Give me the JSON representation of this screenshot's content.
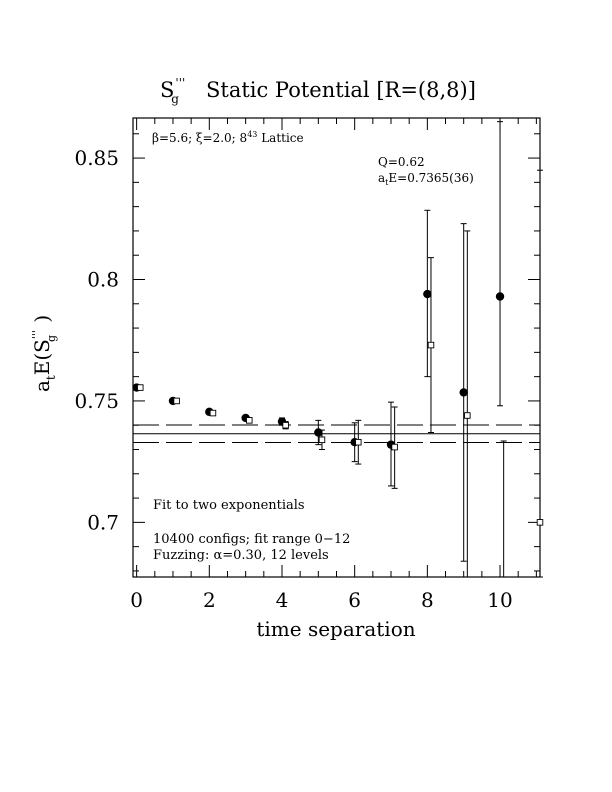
{
  "chart_data": {
    "type": "scatter",
    "title": "Static Potential [R=(8,8)]",
    "title_operator_base": "S",
    "title_operator_sup": "'''",
    "title_operator_sub": "g",
    "ylabel_prefix": "a",
    "ylabel_prefix_sub": "t",
    "ylabel_main": "E(S",
    "ylabel_sup": "'''",
    "ylabel_sub": "g",
    "ylabel_close": " )",
    "xlabel": "time separation",
    "xlim": [
      -0.1,
      11.1
    ],
    "ylim": [
      0.6775,
      0.8665
    ],
    "xticks": [
      0,
      2,
      4,
      6,
      8,
      10
    ],
    "yticks": [
      0.7,
      0.75,
      0.8,
      0.85
    ],
    "grid": false,
    "annotations": {
      "params_text": "β=5.6; ξ=2.0; 8",
      "params_sup": "4",
      "params_tail": "3",
      "params_end": " Lattice",
      "q_text": "Q=0.62",
      "energy_prefix": "a",
      "energy_sub": "t",
      "energy_text": "E=0.7365(36)",
      "fit_text": "Fit to two exponentials",
      "configs_text": "10400 configs; fit range 0−12",
      "fuzzing_text": "Fuzzing: α=0.30, 12 levels"
    },
    "fit_band": {
      "center": 0.7365,
      "upper": 0.7401,
      "lower": 0.7329
    },
    "series": [
      {
        "marker": "filled-circle",
        "points": [
          {
            "x": 0,
            "y": 0.7555,
            "lo": 0.755,
            "hi": 0.756
          },
          {
            "x": 1,
            "y": 0.75,
            "lo": 0.7494,
            "hi": 0.7506
          },
          {
            "x": 2,
            "y": 0.7455,
            "lo": 0.7447,
            "hi": 0.7463
          },
          {
            "x": 3,
            "y": 0.743,
            "lo": 0.742,
            "hi": 0.744
          },
          {
            "x": 4,
            "y": 0.7415,
            "lo": 0.74,
            "hi": 0.743
          },
          {
            "x": 5,
            "y": 0.737,
            "lo": 0.732,
            "hi": 0.742
          },
          {
            "x": 6,
            "y": 0.733,
            "lo": 0.725,
            "hi": 0.741
          },
          {
            "x": 7,
            "y": 0.732,
            "lo": 0.715,
            "hi": 0.7495
          },
          {
            "x": 8,
            "y": 0.794,
            "lo": 0.76,
            "hi": 0.8285
          },
          {
            "x": 9,
            "y": 0.7535,
            "lo": 0.684,
            "hi": 0.823
          },
          {
            "x": 10,
            "y": 0.793,
            "lo": 0.748,
            "hi": 0.865
          }
        ]
      },
      {
        "marker": "open-square",
        "points": [
          {
            "x": 0.1,
            "y": 0.7555,
            "lo": 0.7551,
            "hi": 0.7559
          },
          {
            "x": 1.1,
            "y": 0.75,
            "lo": 0.7495,
            "hi": 0.7505
          },
          {
            "x": 2.1,
            "y": 0.745,
            "lo": 0.7443,
            "hi": 0.7457
          },
          {
            "x": 3.1,
            "y": 0.742,
            "lo": 0.741,
            "hi": 0.743
          },
          {
            "x": 4.1,
            "y": 0.74,
            "lo": 0.7385,
            "hi": 0.7415
          },
          {
            "x": 5.1,
            "y": 0.734,
            "lo": 0.73,
            "hi": 0.738
          },
          {
            "x": 6.1,
            "y": 0.733,
            "lo": 0.724,
            "hi": 0.742
          },
          {
            "x": 7.1,
            "y": 0.731,
            "lo": 0.714,
            "hi": 0.7475
          },
          {
            "x": 8.1,
            "y": 0.773,
            "lo": 0.737,
            "hi": 0.809
          },
          {
            "x": 9.1,
            "y": 0.744,
            "lo": 0.6775,
            "hi": 0.82
          },
          {
            "x": 10.1,
            "y": 0.67,
            "lo": 0.6775,
            "hi": 0.7335
          },
          {
            "x": 11.1,
            "y": 0.7,
            "lo": 0.6775,
            "hi": 0.845
          }
        ]
      }
    ]
  }
}
